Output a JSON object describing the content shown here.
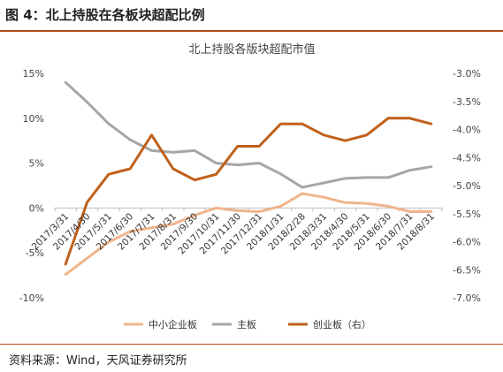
{
  "header": {
    "figure_title": "图 4：北上持股在各板块超配比例"
  },
  "footer": {
    "source": "资料来源：Wind，天风证券研究所"
  },
  "colors": {
    "accent": "#b04a1a",
    "sme": "#f0b48c",
    "main": "#a6a6a6",
    "chinext": "#c0601a"
  },
  "chart_data": {
    "type": "line",
    "title": "北上持股各版块超配市值",
    "categories": [
      "2017/3/31",
      "2017/4/30",
      "2017/5/31",
      "2017/6/30",
      "2017/7/31",
      "2017/8/31",
      "2017/9/30",
      "2017/10/31",
      "2017/11/30",
      "2017/12/31",
      "2018/1/31",
      "2018/2/28",
      "2018/3/31",
      "2018/4/30",
      "2018/5/31",
      "2018/6/30",
      "2018/7/31",
      "2018/8/31"
    ],
    "y_left": {
      "ticks": [
        "15%",
        "10%",
        "5%",
        "0%",
        "-5%",
        "-10%"
      ],
      "ylim": [
        -10,
        15
      ]
    },
    "y_right": {
      "ticks": [
        "-3.0%",
        "-3.5%",
        "-4.0%",
        "-4.5%",
        "-5.0%",
        "-5.5%",
        "-6.0%",
        "-6.5%",
        "-7.0%"
      ],
      "ylim": [
        -7.0,
        -3.0
      ]
    },
    "series": [
      {
        "name": "中小企业板",
        "axis": "left",
        "color": "#f0b48c",
        "values": [
          -7.4,
          -5.6,
          -3.8,
          -2.6,
          -2.2,
          -1.8,
          -0.8,
          0.0,
          -0.3,
          -0.4,
          0.2,
          1.6,
          1.2,
          0.6,
          0.5,
          0.2,
          -0.4,
          -0.4
        ]
      },
      {
        "name": "主板",
        "axis": "left",
        "color": "#a6a6a6",
        "values": [
          14.0,
          11.8,
          9.4,
          7.6,
          6.4,
          6.2,
          6.4,
          5.0,
          4.8,
          5.0,
          3.8,
          2.3,
          2.8,
          3.3,
          3.4,
          3.4,
          4.2,
          4.6
        ]
      },
      {
        "name": "创业板（右）",
        "axis": "right",
        "color": "#c0601a",
        "values": [
          -6.4,
          -5.3,
          -4.8,
          -4.7,
          -4.1,
          -4.7,
          -4.9,
          -4.8,
          -4.3,
          -4.3,
          -3.9,
          -3.9,
          -4.1,
          -4.2,
          -4.1,
          -3.8,
          -3.8,
          -3.9
        ]
      }
    ],
    "legend": "bottom"
  }
}
